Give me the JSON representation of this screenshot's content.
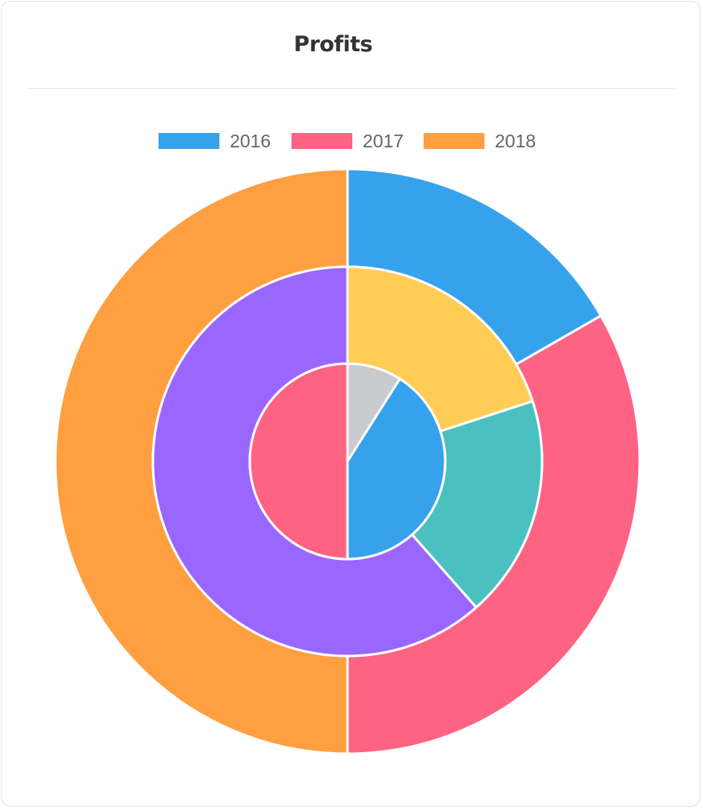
{
  "card": {
    "title": "Profits"
  },
  "chart_data": {
    "type": "pie",
    "subtype": "multi-level doughnut",
    "title": "Profits",
    "legend": {
      "position": "top",
      "entries": [
        {
          "label": "2016",
          "color": "#36a2eb"
        },
        {
          "label": "2017",
          "color": "#ff6384"
        },
        {
          "label": "2018",
          "color": "#ff9f40"
        }
      ]
    },
    "rings": [
      {
        "level": "outer",
        "slices": [
          {
            "value": 16.7,
            "color": "#36a2eb"
          },
          {
            "value": 33.3,
            "color": "#ff6384"
          },
          {
            "value": 50.0,
            "color": "#ff9f40"
          }
        ]
      },
      {
        "level": "middle",
        "slices": [
          {
            "value": 20.0,
            "color": "#ffcd56"
          },
          {
            "value": 18.5,
            "color": "#4bc0c0"
          },
          {
            "value": 61.5,
            "color": "#9966ff"
          }
        ]
      },
      {
        "level": "inner",
        "slices": [
          {
            "value": 9.0,
            "color": "#c9cbcf"
          },
          {
            "value": 41.0,
            "color": "#36a2eb"
          },
          {
            "value": 50.0,
            "color": "#ff6384"
          }
        ]
      }
    ]
  }
}
